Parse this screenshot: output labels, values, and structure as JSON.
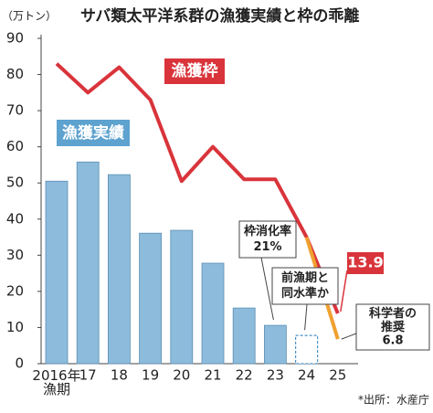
{
  "chart_data": {
    "type": "bar_line",
    "title": "サバ類太平洋系群の漁獲実績と枠の乖離",
    "y_label": "（万トン）",
    "source": "*出所：水産庁",
    "categories": [
      "2016年\n漁期",
      "17",
      "18",
      "19",
      "20",
      "21",
      "22",
      "23",
      "24",
      "25"
    ],
    "ylim": [
      0,
      90
    ],
    "yticks": [
      0,
      10,
      20,
      30,
      40,
      50,
      60,
      70,
      80,
      90
    ],
    "series": [
      {
        "name": "漁獲実績",
        "kind": "bar",
        "color": "#8dbbdb",
        "dashed_indices": [
          8
        ],
        "values": [
          50.5,
          55.8,
          52.3,
          36.1,
          36.9,
          27.8,
          15.4,
          10.6,
          7.8,
          null
        ]
      },
      {
        "name": "漁獲枠",
        "kind": "line",
        "color": "#d9343b",
        "values": [
          83,
          75,
          82,
          73,
          50.5,
          60,
          51,
          51,
          35,
          13.9
        ]
      },
      {
        "name": "科学者の\n推奨",
        "kind": "line",
        "color": "#f0a030",
        "values": [
          null,
          null,
          null,
          null,
          null,
          null,
          null,
          null,
          35,
          6.8
        ]
      }
    ],
    "annotations": [
      {
        "text": "枠消化率\n21%",
        "index": 7
      },
      {
        "text": "前漁期と\n同水準か",
        "index": 8
      }
    ]
  }
}
